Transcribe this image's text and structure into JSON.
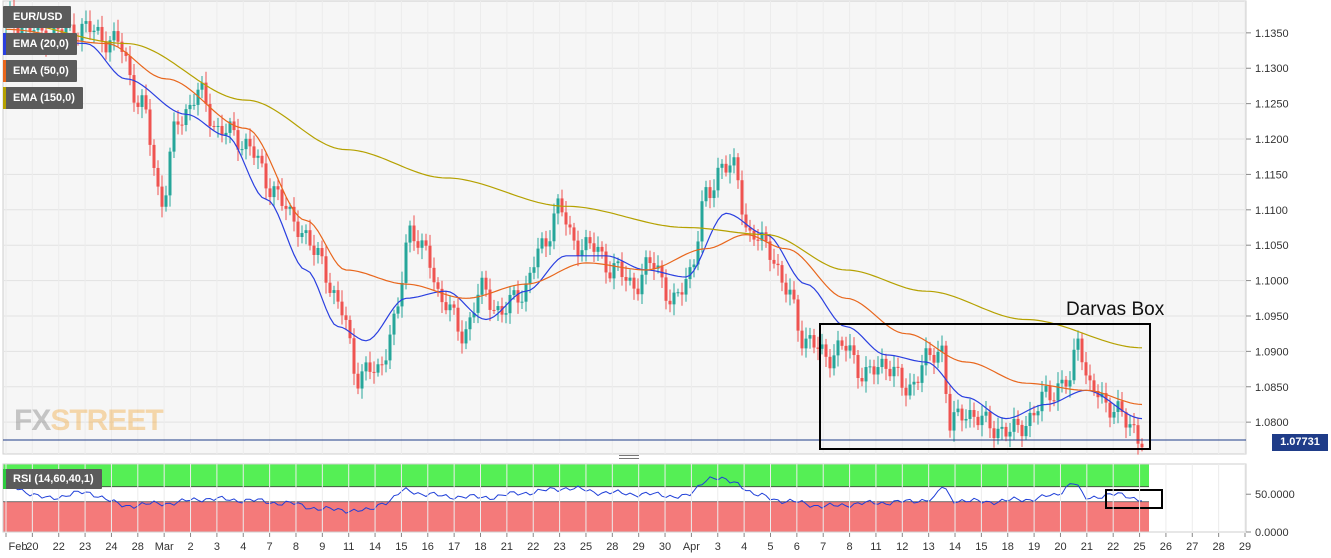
{
  "instrument": "EUR/USD",
  "indicators": {
    "ema20": {
      "label": "EMA (20,0)",
      "color": "#2a3fe0"
    },
    "ema50": {
      "label": "EMA (50,0)",
      "color": "#e8661c"
    },
    "ema150": {
      "label": "EMA (150,0)",
      "color": "#b5a100"
    }
  },
  "last_price": "1.07731",
  "annotation": "Darvas Box",
  "watermark": {
    "fx": "FX",
    "street": "STREET"
  },
  "colors": {
    "up": "#26a69a",
    "down": "#ef5350",
    "rsi_line": "#1f3fd8",
    "rsi_upper_fill": "#55ef55",
    "rsi_lower_fill": "#f47a7a",
    "last_price_line": "#1f3c88"
  },
  "rsi": {
    "label": "RSI (14,60,40,1)",
    "ticks": [
      "50.0000",
      "0.0000"
    ]
  },
  "chart_data": {
    "type": "candlestick",
    "y_ticks": [
      "1.1350",
      "1.1300",
      "1.1250",
      "1.1200",
      "1.1150",
      "1.1100",
      "1.1050",
      "1.1000",
      "1.0950",
      "1.0900",
      "1.0850",
      "1.0800"
    ],
    "ylim": [
      1.0755,
      1.1395
    ],
    "x_ticks": [
      "Feb",
      "20",
      "22",
      "23",
      "24",
      "28",
      "Mar",
      "2",
      "3",
      "4",
      "7",
      "8",
      "9",
      "11",
      "14",
      "15",
      "16",
      "17",
      "18",
      "21",
      "22",
      "23",
      "25",
      "28",
      "29",
      "30",
      "Apr",
      "3",
      "4",
      "5",
      "6",
      "7",
      "8",
      "11",
      "12",
      "13",
      "14",
      "15",
      "18",
      "19",
      "20",
      "21",
      "22",
      "25",
      "26",
      "27",
      "28",
      "29"
    ],
    "series": [
      {
        "name": "Price",
        "anchors": [
          [
            0,
            1.1365
          ],
          [
            10,
            1.135
          ],
          [
            20,
            1.1355
          ],
          [
            28,
            1.1335
          ],
          [
            34,
            1.1245
          ],
          [
            39,
            1.1115
          ],
          [
            43,
            1.1225
          ],
          [
            48,
            1.1265
          ],
          [
            53,
            1.1215
          ],
          [
            60,
            1.1195
          ],
          [
            66,
            1.1135
          ],
          [
            72,
            1.1085
          ],
          [
            78,
            1.1035
          ],
          [
            84,
            1.0955
          ],
          [
            88,
            1.0865
          ],
          [
            93,
            1.0875
          ],
          [
            97,
            1.0935
          ],
          [
            101,
            1.1075
          ],
          [
            105,
            1.1035
          ],
          [
            109,
            1.0975
          ],
          [
            114,
            1.0925
          ],
          [
            119,
            1.0985
          ],
          [
            124,
            1.0955
          ],
          [
            129,
            1.0985
          ],
          [
            134,
            1.1045
          ],
          [
            138,
            1.1105
          ],
          [
            142,
            1.1055
          ],
          [
            147,
            1.1045
          ],
          [
            152,
            1.1015
          ],
          [
            157,
            1.0995
          ],
          [
            162,
            1.1025
          ],
          [
            167,
            1.0965
          ],
          [
            171,
            1.1015
          ],
          [
            175,
            1.1115
          ],
          [
            179,
            1.1165
          ],
          [
            182,
            1.1155
          ],
          [
            186,
            1.1065
          ],
          [
            191,
            1.1045
          ],
          [
            195,
            1.0985
          ],
          [
            200,
            1.0915
          ],
          [
            205,
            1.0895
          ],
          [
            210,
            1.0905
          ],
          [
            215,
            1.0865
          ],
          [
            220,
            1.0885
          ],
          [
            225,
            1.0845
          ],
          [
            230,
            1.0885
          ],
          [
            234,
            1.0905
          ],
          [
            236,
            1.0795
          ],
          [
            240,
            1.0815
          ],
          [
            246,
            1.0795
          ],
          [
            251,
            1.0785
          ],
          [
            256,
            1.0805
          ],
          [
            261,
            1.0845
          ],
          [
            266,
            1.0855
          ],
          [
            268,
            1.0925
          ],
          [
            271,
            1.0845
          ],
          [
            276,
            1.0825
          ],
          [
            281,
            1.0795
          ],
          [
            284,
            1.0778
          ]
        ]
      },
      {
        "name": "EMA (20,0)",
        "anchors": [
          [
            0,
            1.1345
          ],
          [
            20,
            1.1335
          ],
          [
            30,
            1.1285
          ],
          [
            45,
            1.1235
          ],
          [
            55,
            1.1205
          ],
          [
            65,
            1.1115
          ],
          [
            75,
            1.1015
          ],
          [
            83,
            1.0935
          ],
          [
            90,
            1.0915
          ],
          [
            100,
            1.0975
          ],
          [
            110,
            1.0985
          ],
          [
            120,
            1.0945
          ],
          [
            130,
            1.0985
          ],
          [
            140,
            1.1035
          ],
          [
            150,
            1.1035
          ],
          [
            160,
            1.1015
          ],
          [
            170,
            1.1005
          ],
          [
            180,
            1.1095
          ],
          [
            190,
            1.1065
          ],
          [
            200,
            1.0995
          ],
          [
            210,
            1.0935
          ],
          [
            220,
            1.0895
          ],
          [
            230,
            1.0885
          ],
          [
            240,
            1.0835
          ],
          [
            250,
            1.0805
          ],
          [
            260,
            1.0825
          ],
          [
            270,
            1.0845
          ],
          [
            284,
            1.0805
          ]
        ]
      },
      {
        "name": "EMA (50,0)",
        "anchors": [
          [
            0,
            1.1355
          ],
          [
            25,
            1.1335
          ],
          [
            40,
            1.1285
          ],
          [
            60,
            1.1215
          ],
          [
            75,
            1.1085
          ],
          [
            85,
            1.1015
          ],
          [
            100,
            1.0995
          ],
          [
            115,
            1.0975
          ],
          [
            130,
            1.0995
          ],
          [
            145,
            1.1025
          ],
          [
            160,
            1.1015
          ],
          [
            175,
            1.1045
          ],
          [
            185,
            1.1065
          ],
          [
            195,
            1.1045
          ],
          [
            210,
            1.0975
          ],
          [
            225,
            1.0925
          ],
          [
            240,
            1.0885
          ],
          [
            255,
            1.0855
          ],
          [
            270,
            1.0845
          ],
          [
            284,
            1.0825
          ]
        ]
      },
      {
        "name": "EMA (150,0)",
        "anchors": [
          [
            0,
            1.1365
          ],
          [
            30,
            1.1335
          ],
          [
            60,
            1.1255
          ],
          [
            85,
            1.1185
          ],
          [
            110,
            1.1145
          ],
          [
            140,
            1.1105
          ],
          [
            170,
            1.1075
          ],
          [
            190,
            1.1065
          ],
          [
            210,
            1.1015
          ],
          [
            230,
            1.0985
          ],
          [
            255,
            1.0945
          ],
          [
            284,
            1.0905
          ]
        ]
      }
    ],
    "rsi_series": {
      "name": "RSI",
      "levels": [
        60,
        40
      ],
      "anchors": [
        [
          0,
          62
        ],
        [
          10,
          45
        ],
        [
          20,
          52
        ],
        [
          30,
          35
        ],
        [
          40,
          38
        ],
        [
          50,
          44
        ],
        [
          60,
          42
        ],
        [
          70,
          38
        ],
        [
          80,
          30
        ],
        [
          90,
          28
        ],
        [
          95,
          40
        ],
        [
          100,
          55
        ],
        [
          105,
          50
        ],
        [
          110,
          47
        ],
        [
          120,
          46
        ],
        [
          130,
          52
        ],
        [
          140,
          58
        ],
        [
          150,
          52
        ],
        [
          160,
          50
        ],
        [
          170,
          47
        ],
        [
          176,
          72
        ],
        [
          182,
          66
        ],
        [
          188,
          48
        ],
        [
          196,
          40
        ],
        [
          205,
          34
        ],
        [
          215,
          38
        ],
        [
          225,
          40
        ],
        [
          232,
          44
        ],
        [
          234,
          60
        ],
        [
          237,
          42
        ],
        [
          245,
          40
        ],
        [
          255,
          43
        ],
        [
          262,
          48
        ],
        [
          267,
          66
        ],
        [
          270,
          44
        ],
        [
          276,
          50
        ],
        [
          284,
          44
        ]
      ]
    }
  }
}
